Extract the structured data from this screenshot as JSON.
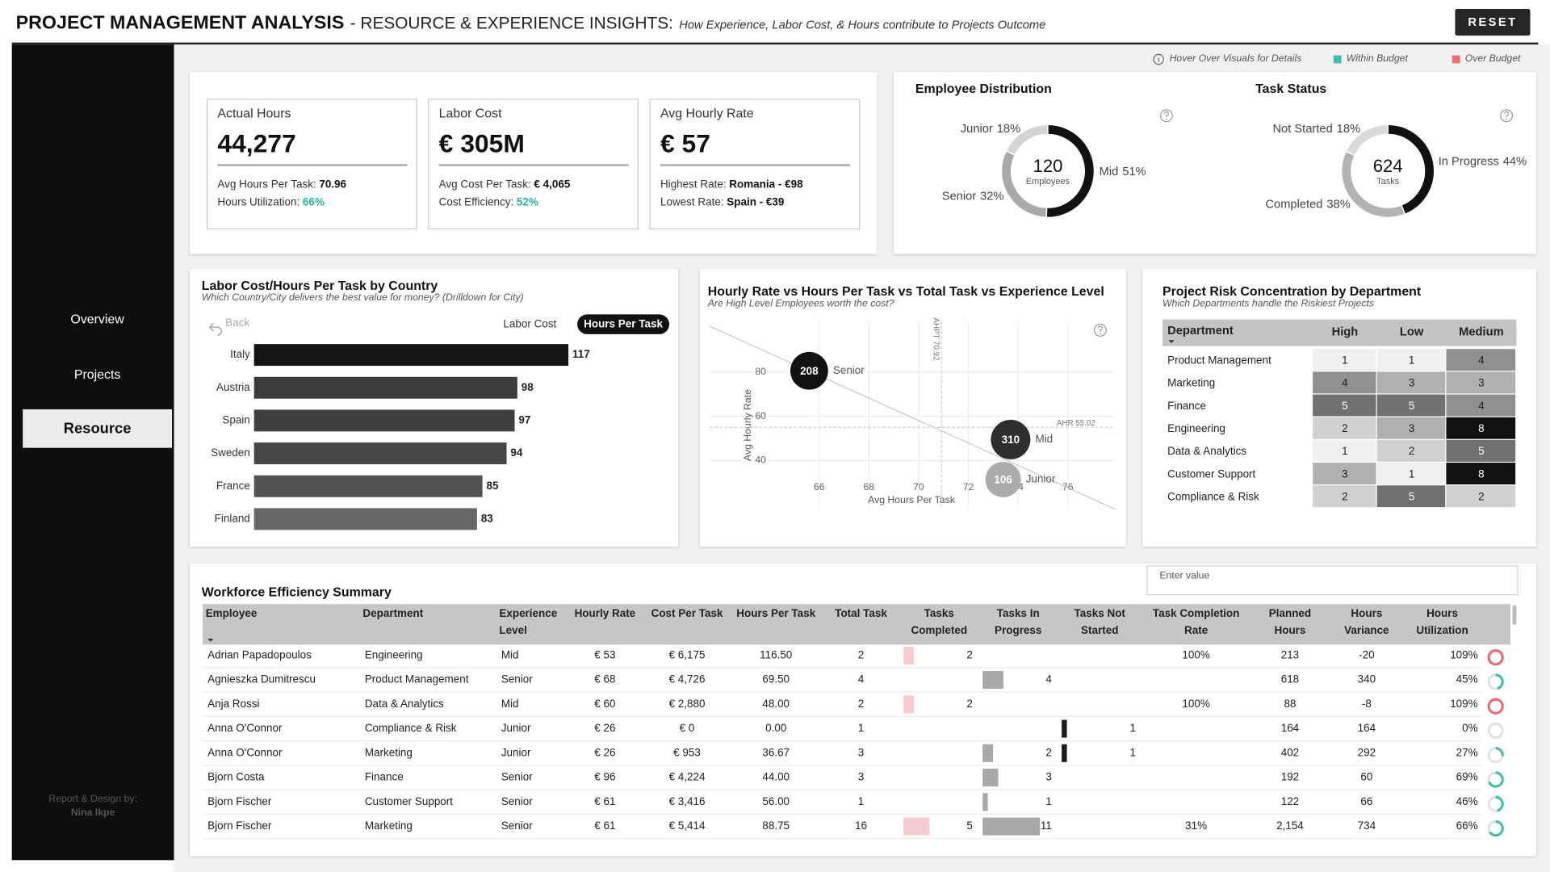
{
  "header": {
    "title": "PROJECT MANAGEMENT ANALYSIS",
    "subtitle": "- RESOURCE & EXPERIENCE INSIGHTS:",
    "tagline": "How Experience, Labor Cost, & Hours contribute to Projects Outcome",
    "reset": "RESET"
  },
  "nav": {
    "items": [
      "Overview",
      "Projects",
      "Resource"
    ],
    "active": 2,
    "credit": [
      "Report & Design by:",
      "Nina Ikpe"
    ]
  },
  "legend": {
    "hint": "Hover Over Visuals for Details",
    "items": [
      {
        "label": "Within Budget",
        "color": "#3fbfaa"
      },
      {
        "label": "Over Budget",
        "color": "#f06a6a"
      }
    ]
  },
  "kpis": [
    {
      "title": "Actual Hours",
      "value": "44,277",
      "details": [
        {
          "label": "Avg Hours Per Task:",
          "value": "70.96"
        },
        {
          "label": "Hours Utilization:",
          "value": "66%",
          "color": "#2ab3a0"
        }
      ]
    },
    {
      "title": "Labor Cost",
      "value": "€ 305M",
      "details": [
        {
          "label": "Avg Cost Per Task:",
          "value": "€ 4,065"
        },
        {
          "label": "Cost Efficiency:",
          "value": "52%",
          "color": "#2ab3a0"
        }
      ]
    },
    {
      "title": "Avg Hourly Rate",
      "value": "€ 57",
      "details": [
        {
          "label": "Highest Rate:",
          "value": "Romania - €98"
        },
        {
          "label": "Lowest Rate:",
          "value": "Spain - €39"
        }
      ]
    }
  ],
  "chart_data": [
    {
      "type": "donut",
      "title": "Employee Distribution",
      "categories": [
        "Junior",
        "Mid",
        "Senior"
      ],
      "values": [
        18,
        51,
        32
      ],
      "value_labels": [
        "18%",
        "51%",
        "32%"
      ],
      "colors": [
        "#d4d4d4",
        "#111111",
        "#a9a9a9"
      ],
      "total": 120,
      "total_label": "Employees"
    },
    {
      "type": "donut",
      "title": "Task Status",
      "categories": [
        "Not Started",
        "In Progress",
        "Completed"
      ],
      "values": [
        18,
        44,
        38
      ],
      "value_labels": [
        "18%",
        "44%",
        "38%"
      ],
      "colors": [
        "#dadada",
        "#111111",
        "#b3b3b3"
      ],
      "total": 624,
      "total_label": "Tasks"
    },
    {
      "type": "bar",
      "title": "Labor Cost/Hours Per Task by Country",
      "subtitle": "Which Country/City delivers the best value for money? (Drilldown for City)",
      "back": "Back",
      "toggle": [
        "Labor Cost",
        "Hours Per Task"
      ],
      "toggle_active": 1,
      "categories": [
        "Italy",
        "Austria",
        "Spain",
        "Sweden",
        "France",
        "Finland"
      ],
      "values": [
        117,
        98,
        97,
        94,
        85,
        83
      ],
      "colors": [
        "#141414",
        "#3b3b3b",
        "#3f3f3f",
        "#464646",
        "#525252",
        "#676767"
      ]
    },
    {
      "type": "bubble",
      "title": "Hourly Rate vs Hours Per Task vs Total Task vs Experience Level",
      "subtitle": "Are High Level Employees worth the cost?",
      "x_label": "Avg Hours Per Task",
      "y_label": "Avg Hourly Rate",
      "xlim": [
        61.6,
        77.9
      ],
      "ylim": [
        18,
        103
      ],
      "xticks": [
        66,
        68,
        70,
        72,
        74,
        76
      ],
      "yticks": [
        40,
        60,
        80
      ],
      "grid": true,
      "series": [
        {
          "name": "Senior",
          "color": "#111111",
          "x": [
            65.6
          ],
          "values": [
            80.6
          ],
          "size": [
            208
          ]
        },
        {
          "name": "Mid",
          "color": "#2e2e2e",
          "x": [
            73.7
          ],
          "values": [
            49.5
          ],
          "size": [
            310
          ]
        },
        {
          "name": "Junior",
          "color": "#ababab",
          "x": [
            73.4
          ],
          "values": [
            31.4
          ],
          "size": [
            106
          ]
        }
      ],
      "reference_lines": [
        {
          "axis": "y",
          "value": 55.02,
          "label": "AHR 55.02"
        },
        {
          "axis": "x",
          "value": 70.92,
          "label": "AHPT 70.92"
        }
      ]
    },
    {
      "type": "heatmap",
      "title": "Project Risk Concentration by Department",
      "subtitle": "Which Departments handle the Riskiest Projects",
      "row_header": "Department",
      "columns": [
        "High",
        "Low",
        "Medium"
      ],
      "categories": [
        "Product Management",
        "Marketing",
        "Finance",
        "Engineering",
        "Data & Analytics",
        "Customer Support",
        "Compliance & Risk"
      ],
      "values": [
        [
          1,
          1,
          4
        ],
        [
          4,
          3,
          3
        ],
        [
          5,
          5,
          4
        ],
        [
          2,
          3,
          8
        ],
        [
          1,
          2,
          5
        ],
        [
          3,
          1,
          8
        ],
        [
          2,
          5,
          2
        ]
      ],
      "color_range": [
        "#f0f0f0",
        "#111111"
      ]
    }
  ],
  "table": {
    "title": "Workforce Efficiency Summary",
    "search_placeholder": "Enter value",
    "columns": [
      "Employee",
      "Department",
      "Experience Level",
      "Hourly Rate",
      "Cost Per Task",
      "Hours Per Task",
      "Total Task",
      "Tasks Completed",
      "Tasks In Progress",
      "Tasks Not Started",
      "Task Completion Rate",
      "Planned Hours",
      "Hours Variance",
      "Hours Utilization"
    ],
    "rows": [
      [
        "Adrian Papadopoulos",
        "Engineering",
        "Mid",
        "€ 53",
        "€ 6,175",
        "116.50",
        2,
        2,
        null,
        null,
        "100%",
        213,
        -20,
        "109%"
      ],
      [
        "Agnieszka Dumitrescu",
        "Product Management",
        "Senior",
        "€ 68",
        "€ 4,726",
        "69.50",
        4,
        null,
        4,
        null,
        null,
        618,
        340,
        "45%"
      ],
      [
        "Anja Rossi",
        "Data & Analytics",
        "Mid",
        "€ 60",
        "€ 2,880",
        "48.00",
        2,
        2,
        null,
        null,
        "100%",
        88,
        -8,
        "109%"
      ],
      [
        "Anna O'Connor",
        "Compliance & Risk",
        "Junior",
        "€ 26",
        "€ 0",
        "0.00",
        1,
        null,
        null,
        1,
        null,
        164,
        164,
        "0%"
      ],
      [
        "Anna O'Connor",
        "Marketing",
        "Junior",
        "€ 26",
        "€ 953",
        "36.67",
        3,
        null,
        2,
        1,
        null,
        402,
        292,
        "27%"
      ],
      [
        "Bjorn Costa",
        "Finance",
        "Senior",
        "€ 96",
        "€ 4,224",
        "44.00",
        3,
        null,
        3,
        null,
        null,
        192,
        60,
        "69%"
      ],
      [
        "Bjorn Fischer",
        "Customer Support",
        "Senior",
        "€ 61",
        "€ 3,416",
        "56.00",
        1,
        null,
        1,
        null,
        null,
        122,
        66,
        "46%"
      ],
      [
        "Bjorn Fischer",
        "Marketing",
        "Senior",
        "€ 61",
        "€ 5,414",
        "88.75",
        16,
        5,
        11,
        null,
        "31%",
        "2,154",
        734,
        "66%"
      ]
    ],
    "utilization_values": [
      109,
      45,
      109,
      0,
      27,
      69,
      46,
      66
    ],
    "task_bar_colors": [
      "#f5cdd1",
      "#a9a9a9",
      "#1c1c1c"
    ]
  }
}
